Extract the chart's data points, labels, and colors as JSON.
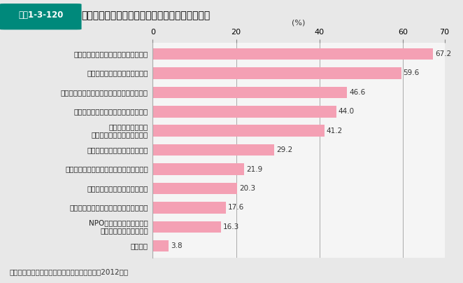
{
  "title": "図表1-3-120　東日本大震災以降強く意識するようになったこと",
  "title_label": "東日本大震災以降強く意識するようになったこと",
  "title_badge": "図表1-3-120",
  "categories": [
    "家族や親戚とのつながりを大切に思う",
    "地域でのつながりを大切に思う",
    "社会全体として助け合うことが重要だと思う",
    "友人や知人とのつながりを大切に思う",
    "自分のことは自分で\n守らなければならないと思う",
    "社会や経済の動きに関心を持つ",
    "仕事を通じた人とのつながりを大切に思う",
    "国際的なつながりを大切に思う",
    "知りたい情報は他人に頼らず自分で探す",
    "NPOやボランティア団体の\n活動に参加しようと思う",
    "特にない"
  ],
  "values": [
    67.2,
    59.6,
    46.6,
    44.0,
    41.2,
    29.2,
    21.9,
    20.3,
    17.6,
    16.3,
    3.8
  ],
  "bar_color": "#F4A0B4",
  "background_color": "#E8E8E8",
  "plot_background": "#F5F5F5",
  "xlabel": "(%)",
  "xlim": [
    0,
    70
  ],
  "xticks": [
    0,
    20,
    40,
    60,
    70
  ],
  "grid_color": "#AAAAAA",
  "footnote": "資料：内閣府「社会意識に関する世論調査」（2012年）",
  "badge_bg": "#00897B",
  "badge_text_color": "#FFFFFF",
  "title_color": "#000000"
}
